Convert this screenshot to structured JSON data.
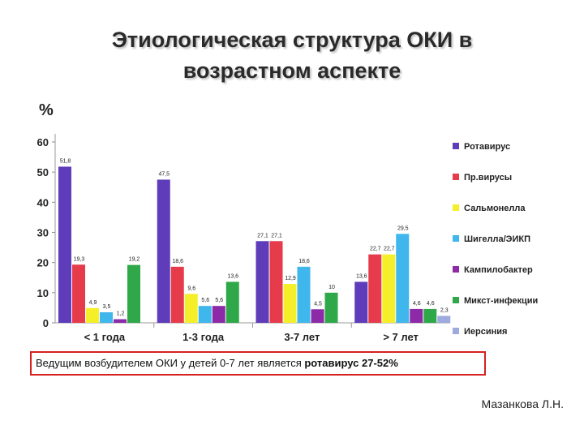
{
  "slide": {
    "title_line1": "Этиологическая структура ОКИ в",
    "title_line2": "возрастном аспекте",
    "conclusion_prefix": "Ведущим возбудителем ОКИ у детей 0-7 лет является ",
    "conclusion_strong": "ротавирус 27-52%",
    "author": "Мазанкова Л.Н."
  },
  "chart_data": {
    "type": "bar",
    "ylabel": "%",
    "ylim": [
      0,
      60
    ],
    "yticks": [
      0,
      10,
      20,
      30,
      40,
      50,
      60
    ],
    "grid": false,
    "legend_position": "right",
    "categories": [
      "< 1 года",
      "1-3 года",
      "3-7 лет",
      "> 7 лет"
    ],
    "series": [
      {
        "name": "Ротавирус",
        "color": "#5e3cba",
        "values": [
          51.8,
          47.5,
          27.1,
          13.6
        ],
        "labels": [
          "51,8",
          "47,5",
          "27,1",
          "13,6"
        ]
      },
      {
        "name": "Пр.вирусы",
        "color": "#e63b4a",
        "values": [
          19.3,
          18.6,
          27.1,
          22.7
        ],
        "labels": [
          "19,3",
          "18,6",
          "27,1",
          "22,7"
        ]
      },
      {
        "name": "Сальмонелла",
        "color": "#f5ef2a",
        "values": [
          4.9,
          9.6,
          12.9,
          22.7
        ],
        "labels": [
          "4,9",
          "9,6",
          "12,9",
          "22,7"
        ]
      },
      {
        "name": "Шигелла/ЭИКП",
        "color": "#3fb6ec",
        "values": [
          3.5,
          5.6,
          18.6,
          29.5
        ],
        "labels": [
          "3,5",
          "5,6",
          "18,6",
          "29,5"
        ]
      },
      {
        "name": "Кампилобактер",
        "color": "#8c2aa8",
        "values": [
          1.2,
          5.6,
          4.5,
          4.6
        ],
        "labels": [
          "1,2",
          "5,6",
          "4,5",
          "4,6"
        ]
      },
      {
        "name": "Микст-инфекции",
        "color": "#2fa84a",
        "values": [
          19.2,
          13.6,
          10,
          4.6
        ],
        "labels": [
          "19,2",
          "13,6",
          "10",
          "4,6"
        ]
      },
      {
        "name": "Иерсиния",
        "color": "#9ea9de",
        "values": [
          null,
          null,
          null,
          2.3
        ],
        "labels": [
          "",
          "",
          "",
          "2,3"
        ]
      }
    ]
  }
}
